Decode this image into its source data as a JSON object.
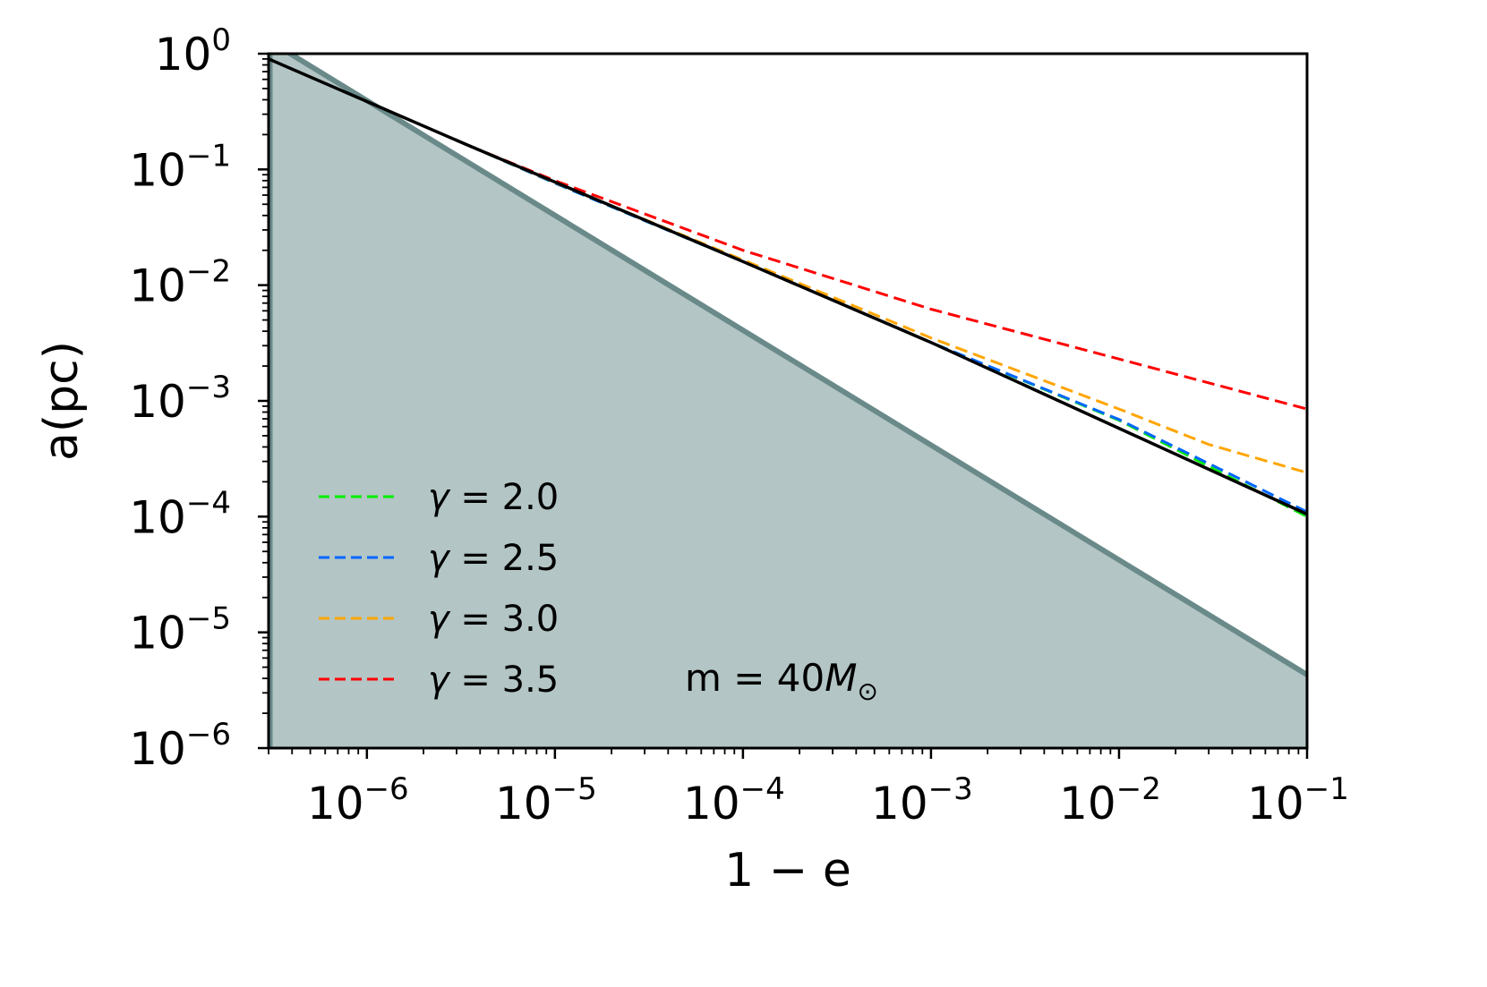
{
  "chart_data": {
    "type": "line",
    "xlabel": "1 − e",
    "ylabel": "a(pc)",
    "xscale": "log",
    "yscale": "log",
    "xlim": [
      3e-07,
      0.1
    ],
    "ylim": [
      1e-06,
      1
    ],
    "x_ticks": [
      {
        "base": "10",
        "exp": "−6",
        "value": 1e-06
      },
      {
        "base": "10",
        "exp": "−5",
        "value": 1e-05
      },
      {
        "base": "10",
        "exp": "−4",
        "value": 0.0001
      },
      {
        "base": "10",
        "exp": "−3",
        "value": 0.001
      },
      {
        "base": "10",
        "exp": "−2",
        "value": 0.01
      },
      {
        "base": "10",
        "exp": "−1",
        "value": 0.1
      }
    ],
    "y_ticks": [
      {
        "base": "10",
        "exp": "0",
        "value": 1
      },
      {
        "base": "10",
        "exp": "−1",
        "value": 0.1
      },
      {
        "base": "10",
        "exp": "−2",
        "value": 0.01
      },
      {
        "base": "10",
        "exp": "−3",
        "value": 0.001
      },
      {
        "base": "10",
        "exp": "−4",
        "value": 0.0001
      },
      {
        "base": "10",
        "exp": "−5",
        "value": 1e-05
      },
      {
        "base": "10",
        "exp": "−6",
        "value": 1e-06
      }
    ],
    "grid": false,
    "legend_position": "lower-left",
    "annotation": {
      "text": "m = 40",
      "symbol": "M",
      "subscript": "⊙"
    },
    "shaded_region": {
      "color": "#b3c5c5",
      "edge_color": "#6a8a8a",
      "boundary": [
        [
          3e-07,
          1.3
        ],
        [
          0.1,
          4.3e-06
        ]
      ]
    },
    "series": [
      {
        "name": "",
        "style": "solid",
        "color": "#000000",
        "points": [
          [
            3e-07,
            0.9
          ],
          [
            3.5e-06,
            0.16
          ],
          [
            0.0001,
            0.016
          ],
          [
            0.001,
            0.0032
          ],
          [
            0.1,
            0.000105
          ]
        ]
      },
      {
        "name": "γ = 2.0",
        "style": "dashed",
        "color": "#00ee00",
        "points": [
          [
            3.5e-06,
            0.16
          ],
          [
            1e-05,
            0.076
          ],
          [
            0.0001,
            0.016
          ],
          [
            0.001,
            0.0032
          ],
          [
            0.01,
            0.00068
          ],
          [
            0.1,
            0.0001
          ]
        ]
      },
      {
        "name": "γ = 2.5",
        "style": "dashed",
        "color": "#0066ff",
        "points": [
          [
            3.5e-06,
            0.16
          ],
          [
            1e-05,
            0.076
          ],
          [
            0.0001,
            0.016
          ],
          [
            0.001,
            0.0032
          ],
          [
            0.01,
            0.00069
          ],
          [
            0.1,
            0.00011
          ]
        ]
      },
      {
        "name": "γ = 3.0",
        "style": "dashed",
        "color": "#ffa500",
        "points": [
          [
            3.5e-06,
            0.16
          ],
          [
            1e-05,
            0.077
          ],
          [
            0.0001,
            0.0165
          ],
          [
            0.001,
            0.0035
          ],
          [
            0.01,
            0.00085
          ],
          [
            0.03,
            0.00042
          ],
          [
            0.1,
            0.00024
          ]
        ]
      },
      {
        "name": "γ = 3.5",
        "style": "dashed",
        "color": "#ff0000",
        "points": [
          [
            3.5e-06,
            0.16
          ],
          [
            1e-05,
            0.08
          ],
          [
            0.0001,
            0.02
          ],
          [
            0.001,
            0.0062
          ],
          [
            0.01,
            0.0023
          ],
          [
            0.1,
            0.00085
          ]
        ]
      }
    ]
  }
}
